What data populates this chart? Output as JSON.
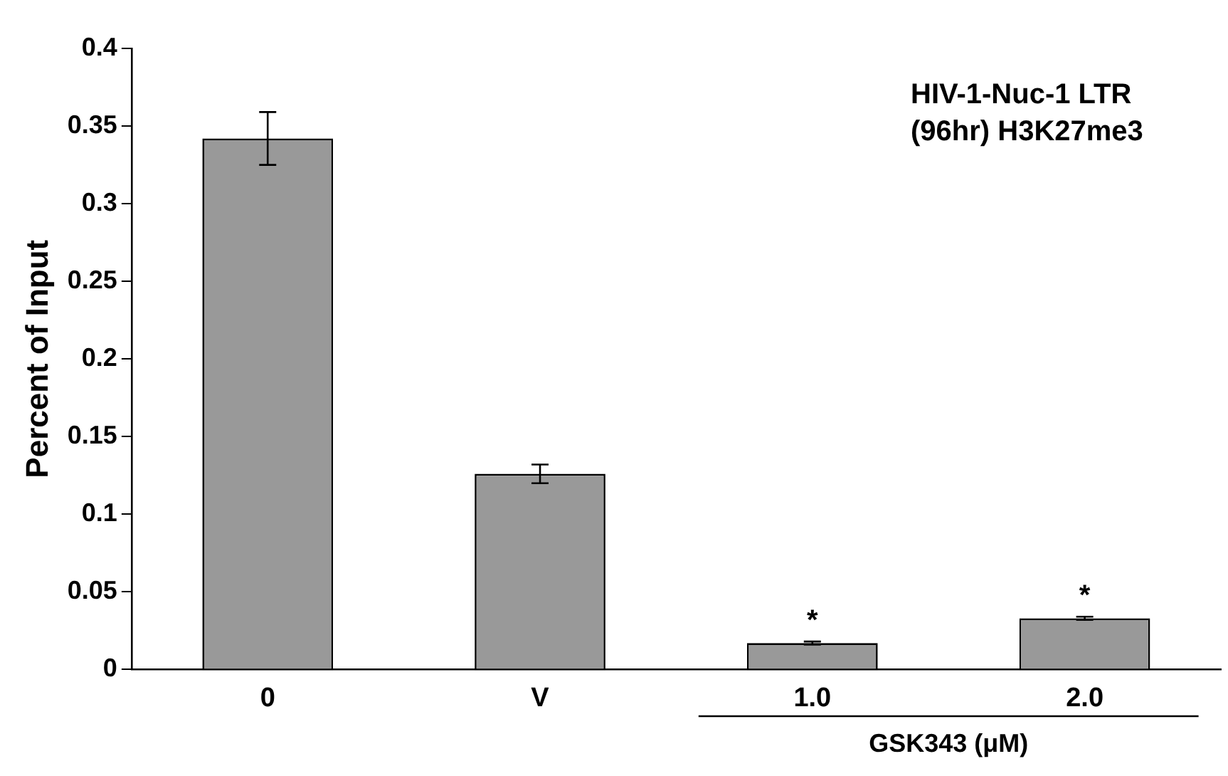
{
  "chart_data": {
    "type": "bar",
    "title": "HIV-1-Nuc-1 LTR (96hr) H3K27me3",
    "ylabel": "Percent of Input",
    "xlabel": "GSK343 (μM)",
    "categories": [
      "0",
      "V",
      "1.0",
      "2.0"
    ],
    "values": [
      0.342,
      0.126,
      0.017,
      0.033
    ],
    "errors": [
      0.017,
      0.006,
      0.001,
      0.001
    ],
    "color": "#999999",
    "ylim": [
      0,
      0.4
    ],
    "yticks": [
      0,
      0.05,
      0.1,
      0.15,
      0.2,
      0.25,
      0.3,
      0.35,
      0.4
    ],
    "annotations": [
      {
        "text": "*",
        "x": "1.0",
        "y": 0.018
      },
      {
        "text": "*",
        "x": "2.0",
        "y": 0.034
      }
    ],
    "grid": false,
    "legend": false
  }
}
